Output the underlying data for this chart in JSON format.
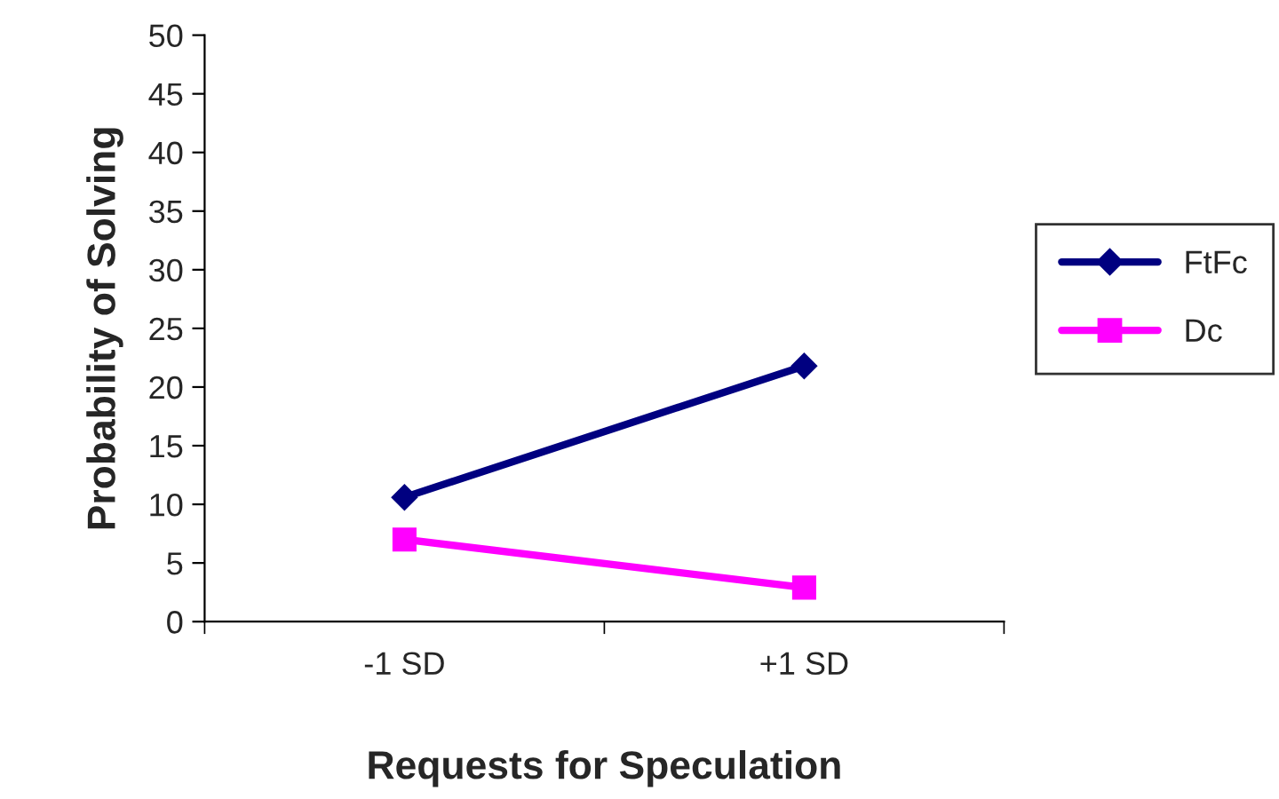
{
  "chart_data": {
    "type": "line",
    "xlabel": "Requests for Speculation",
    "ylabel": "Probability of Solving",
    "categories": [
      "-1 SD",
      "+1 SD"
    ],
    "series": [
      {
        "name": "FtFc",
        "color": "#000080",
        "values": [
          10.6,
          21.8
        ],
        "marker": "diamond"
      },
      {
        "name": "Dc",
        "color": "#ff00ff",
        "values": [
          7.0,
          2.9
        ],
        "marker": "square"
      }
    ],
    "ylim": [
      0,
      50
    ],
    "yticks": [
      0,
      5,
      10,
      15,
      20,
      25,
      30,
      35,
      40,
      45,
      50
    ],
    "grid": false,
    "legend": "right",
    "line_style": "solid"
  }
}
